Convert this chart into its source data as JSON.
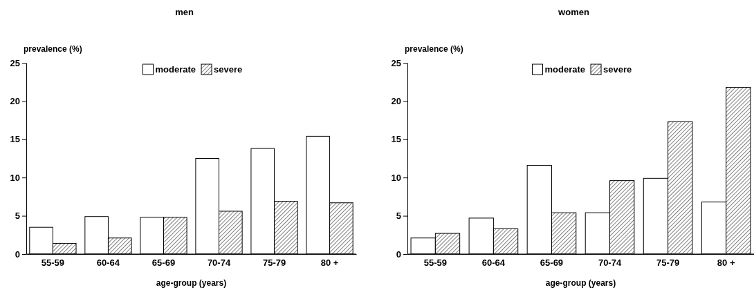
{
  "chart_data": [
    {
      "type": "bar",
      "title": "men",
      "xlabel": "age-group (years)",
      "ylabel": "prevalence (%)",
      "categories": [
        "55-59",
        "60-64",
        "65-69",
        "70-74",
        "75-79",
        "80 +"
      ],
      "ylim": [
        0,
        25
      ],
      "yticks": [
        0,
        5,
        10,
        15,
        20,
        25
      ],
      "legend": "top",
      "grid": false,
      "series": [
        {
          "name": "moderate",
          "color": "#ffffff",
          "values": [
            3.5,
            4.9,
            4.8,
            12.5,
            13.8,
            15.4
          ]
        },
        {
          "name": "severe",
          "color": "#000000",
          "values": [
            1.4,
            2.1,
            4.8,
            5.6,
            6.9,
            6.7
          ]
        }
      ]
    },
    {
      "type": "bar",
      "title": "women",
      "xlabel": "age-group (years)",
      "ylabel": "prevalence (%)",
      "categories": [
        "55-59",
        "60-64",
        "65-69",
        "70-74",
        "75-79",
        "80 +"
      ],
      "ylim": [
        0,
        25
      ],
      "yticks": [
        0,
        5,
        10,
        15,
        20,
        25
      ],
      "legend": "top",
      "grid": false,
      "series": [
        {
          "name": "moderate",
          "color": "#ffffff",
          "values": [
            2.1,
            4.7,
            11.6,
            5.4,
            9.9,
            6.8
          ]
        },
        {
          "name": "severe",
          "color": "#000000",
          "values": [
            2.7,
            3.3,
            5.4,
            9.6,
            17.3,
            21.8
          ]
        }
      ]
    }
  ]
}
